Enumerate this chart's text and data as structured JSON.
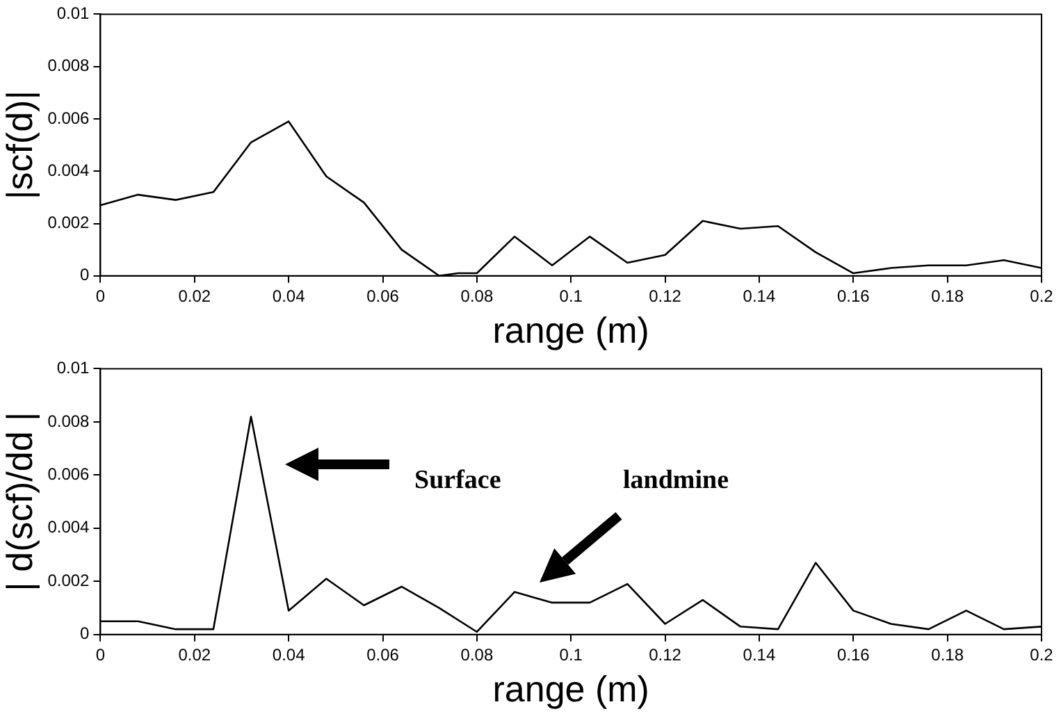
{
  "chart_data": [
    {
      "type": "line",
      "xlabel": "range (m)",
      "ylabel": "|scf(d)|",
      "x": [
        0,
        0.008,
        0.016,
        0.024,
        0.032,
        0.04,
        0.048,
        0.056,
        0.064,
        0.072,
        0.076,
        0.08,
        0.088,
        0.096,
        0.104,
        0.112,
        0.12,
        0.128,
        0.136,
        0.144,
        0.152,
        0.16,
        0.168,
        0.176,
        0.184,
        0.192,
        0.2
      ],
      "series": [
        {
          "color": "#000000",
          "values": [
            0.0027,
            0.0031,
            0.0029,
            0.0032,
            0.0051,
            0.0059,
            0.0038,
            0.0028,
            0.001,
            0,
            0.0001,
            0.0001,
            0.0015,
            0.0004,
            0.0015,
            0.0005,
            0.0008,
            0.0021,
            0.0018,
            0.0019,
            0.0009,
            0.0001,
            0.0003,
            0.0004,
            0.0004,
            0.0006,
            0.0003
          ]
        }
      ],
      "xlim": [
        0,
        0.2
      ],
      "xticks": [
        0,
        0.02,
        0.04,
        0.06,
        0.08,
        0.1,
        0.12,
        0.14,
        0.16,
        0.18,
        0.2
      ],
      "ylim": [
        0,
        0.01
      ],
      "yticks": [
        0,
        0.002,
        0.004,
        0.006,
        0.008,
        0.01
      ],
      "grid": false,
      "legend": false,
      "marker": "none",
      "line_style": "solid"
    },
    {
      "type": "line",
      "xlabel": "range (m)",
      "ylabel": "| d(scf)/dd |",
      "x": [
        0,
        0.008,
        0.016,
        0.024,
        0.032,
        0.04,
        0.048,
        0.056,
        0.064,
        0.072,
        0.08,
        0.088,
        0.096,
        0.104,
        0.112,
        0.12,
        0.128,
        0.136,
        0.144,
        0.152,
        0.16,
        0.168,
        0.176,
        0.184,
        0.192,
        0.2
      ],
      "series": [
        {
          "color": "#000000",
          "values": [
            0.0005,
            0.0005,
            0.0002,
            0.0002,
            0.0082,
            0.0009,
            0.0021,
            0.0011,
            0.0018,
            0.001,
            0.0001,
            0.0016,
            0.0012,
            0.0012,
            0.0019,
            0.0004,
            0.0013,
            0.0003,
            0.0002,
            0.0027,
            0.0009,
            0.0004,
            0.0002,
            0.0009,
            0.0002,
            0.0003
          ]
        }
      ],
      "xlim": [
        0,
        0.2
      ],
      "xticks": [
        0,
        0.02,
        0.04,
        0.06,
        0.08,
        0.1,
        0.12,
        0.14,
        0.16,
        0.18,
        0.2
      ],
      "ylim": [
        0,
        0.01
      ],
      "yticks": [
        0,
        0.002,
        0.004,
        0.006,
        0.008,
        0.01
      ],
      "grid": false,
      "legend": false,
      "marker": "none",
      "line_style": "solid",
      "annotations": [
        "Surface",
        "landmine"
      ]
    }
  ]
}
